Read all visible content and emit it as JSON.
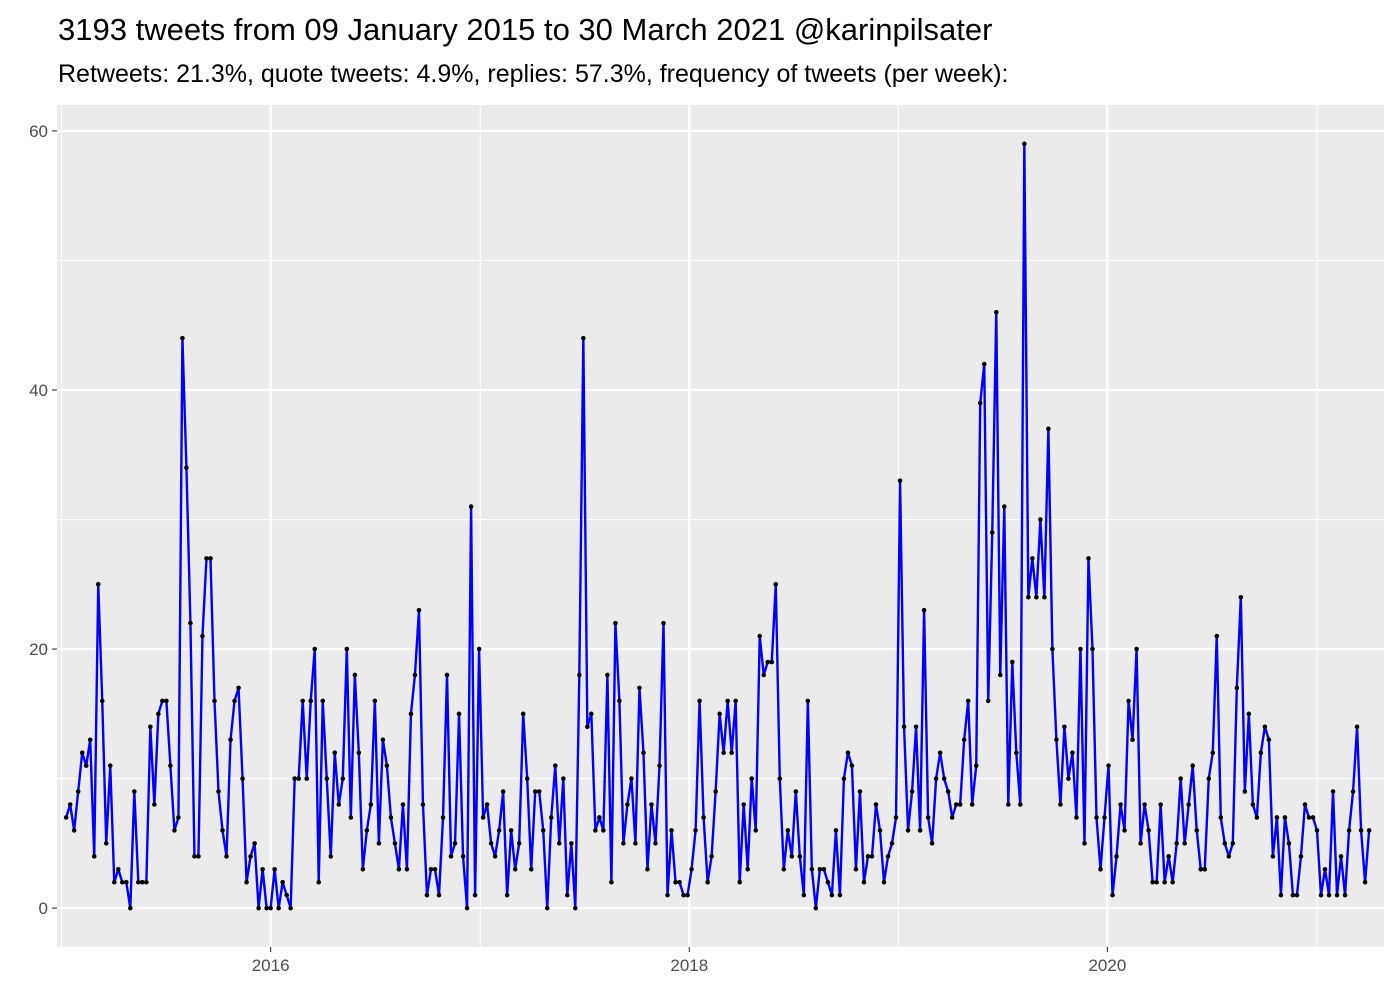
{
  "chart_data": {
    "type": "line",
    "title": "3193 tweets from 09 January 2015 to 30 March 2021 @karinpilsater",
    "subtitle": "Retweets: 21.3%, quote tweets: 4.9%, replies: 57.3%, frequency of tweets (per week):",
    "xlabel": "",
    "ylabel": "",
    "xlim": [
      "2014-12-24",
      "2021-04-28"
    ],
    "ylim": [
      -3,
      62
    ],
    "x_ticks": [
      "2016",
      "2018",
      "2020"
    ],
    "y_ticks": [
      "0",
      "20",
      "40",
      "60"
    ],
    "grid": true,
    "line_color": "#0000ff",
    "point_color": "#000000",
    "panel_background": "#ebebeb",
    "start_date": "2015-01-09",
    "interval_days": 7,
    "series": [
      {
        "values": [
          7,
          8,
          6,
          9,
          12,
          11,
          13,
          4,
          25,
          16,
          5,
          11,
          2,
          3,
          2,
          2,
          0,
          9,
          2,
          2,
          2,
          14,
          8,
          15,
          16,
          16,
          11,
          6,
          7,
          44,
          34,
          22,
          4,
          4,
          21,
          27,
          27,
          16,
          9,
          6,
          4,
          13,
          16,
          17,
          10,
          2,
          4,
          5,
          0,
          3,
          0,
          0,
          3,
          0,
          2,
          1,
          0,
          10,
          10,
          16,
          10,
          16,
          20,
          2,
          16,
          10,
          4,
          12,
          8,
          10,
          20,
          7,
          18,
          12,
          3,
          6,
          8,
          16,
          5,
          13,
          11,
          7,
          5,
          3,
          8,
          3,
          15,
          18,
          23,
          8,
          1,
          3,
          3,
          1,
          7,
          18,
          4,
          5,
          15,
          4,
          0,
          31,
          1,
          20,
          7,
          8,
          5,
          4,
          6,
          9,
          1,
          6,
          3,
          5,
          15,
          10,
          3,
          9,
          9,
          6,
          0,
          7,
          11,
          5,
          10,
          1,
          5,
          0,
          18,
          44,
          14,
          15,
          6,
          7,
          6,
          18,
          2,
          22,
          16,
          5,
          8,
          10,
          5,
          17,
          12,
          3,
          8,
          5,
          11,
          22,
          1,
          6,
          2,
          2,
          1,
          1,
          3,
          6,
          16,
          7,
          2,
          4,
          9,
          15,
          12,
          16,
          12,
          16,
          2,
          8,
          3,
          10,
          6,
          21,
          18,
          19,
          19,
          25,
          10,
          3,
          6,
          4,
          9,
          4,
          1,
          16,
          3,
          0,
          3,
          3,
          2,
          1,
          6,
          1,
          10,
          12,
          11,
          3,
          9,
          2,
          4,
          4,
          8,
          6,
          2,
          4,
          5,
          7,
          33,
          14,
          6,
          9,
          14,
          6,
          23,
          7,
          5,
          10,
          12,
          10,
          9,
          7,
          8,
          8,
          13,
          16,
          8,
          11,
          39,
          42,
          16,
          29,
          46,
          18,
          31,
          8,
          19,
          12,
          8,
          59,
          24,
          27,
          24,
          30,
          24,
          37,
          20,
          13,
          8,
          14,
          10,
          12,
          7,
          20,
          5,
          27,
          20,
          7,
          3,
          7,
          11,
          1,
          4,
          8,
          6,
          16,
          13,
          20,
          5,
          8,
          6,
          2,
          2,
          8,
          2,
          4,
          2,
          5,
          10,
          5,
          8,
          11,
          6,
          3,
          3,
          10,
          12,
          21,
          7,
          5,
          4,
          5,
          17,
          24,
          9,
          15,
          8,
          7,
          12,
          14,
          13,
          4,
          7,
          1,
          7,
          5,
          1,
          1,
          4,
          8,
          7,
          7,
          6,
          1,
          3,
          1,
          9,
          1,
          4,
          1,
          6,
          9,
          14,
          6,
          2,
          6
        ]
      }
    ]
  }
}
